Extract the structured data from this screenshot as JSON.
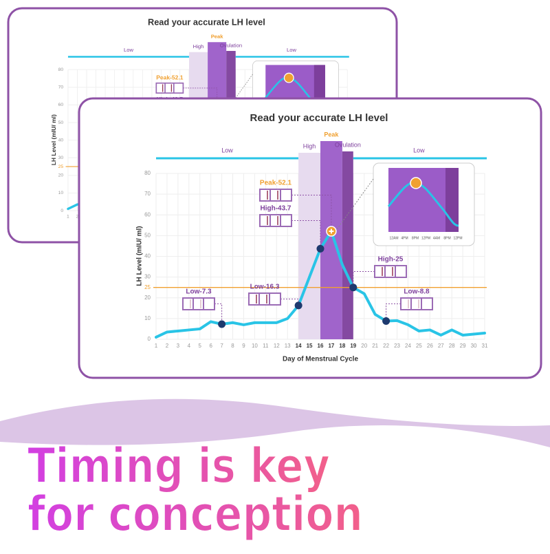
{
  "chart_data": {
    "type": "line",
    "title": "Read your accurate LH level",
    "xlabel": "Day of Menstrual Cycle",
    "ylabel": "LH Level (mIU/ ml)",
    "x": [
      1,
      2,
      3,
      4,
      5,
      6,
      7,
      8,
      9,
      10,
      11,
      12,
      13,
      14,
      15,
      16,
      17,
      18,
      19,
      20,
      21,
      22,
      23,
      24,
      25,
      26,
      27,
      28,
      29,
      30,
      31
    ],
    "values": [
      1,
      3.5,
      4,
      4.5,
      5,
      8.5,
      7.3,
      8,
      7,
      8,
      8,
      8,
      10,
      16.3,
      30,
      43.7,
      52.1,
      36,
      25,
      22,
      12,
      8.8,
      9,
      7,
      4,
      4.5,
      2,
      4.5,
      2,
      2.5,
      3
    ],
    "color": "#29c4e6",
    "xlim": [
      1,
      31
    ],
    "ylim": [
      0,
      80
    ],
    "yticks": [
      0,
      10,
      20,
      30,
      40,
      50,
      60,
      70,
      80
    ],
    "grid": true,
    "reference_line": {
      "value": 25,
      "label": "25",
      "color": "#f0a030"
    },
    "phases": [
      {
        "label": "Low",
        "from": 1,
        "to": 14,
        "style": "line",
        "color": "#29c4e6"
      },
      {
        "label": "High",
        "from": 14,
        "to": 16,
        "style": "band",
        "color": "#e6d9ee"
      },
      {
        "label": "Peak",
        "from": 16,
        "to": 18,
        "style": "band",
        "color": "#9b5cc8"
      },
      {
        "label": "Ovulation",
        "from": 18,
        "to": 19,
        "style": "band",
        "color": "#7d3f9c"
      },
      {
        "label": "Low",
        "from": 19,
        "to": 31,
        "style": "line",
        "color": "#29c4e6"
      }
    ],
    "annotations": [
      {
        "label": "Low-7.3",
        "day": 7
      },
      {
        "label": "Low-16.3",
        "day": 14
      },
      {
        "label": "Peak-52.1",
        "day": 17
      },
      {
        "label": "High-43.7",
        "day": 16
      },
      {
        "label": "High-25",
        "day": 19
      },
      {
        "label": "Low-8.8",
        "day": 22
      }
    ],
    "inset_labels": [
      "12AM",
      "4PM",
      "8PM",
      "12PM",
      "4AM",
      "8PM",
      "12PM"
    ]
  },
  "headline": [
    "Timing is key",
    "for conception"
  ]
}
